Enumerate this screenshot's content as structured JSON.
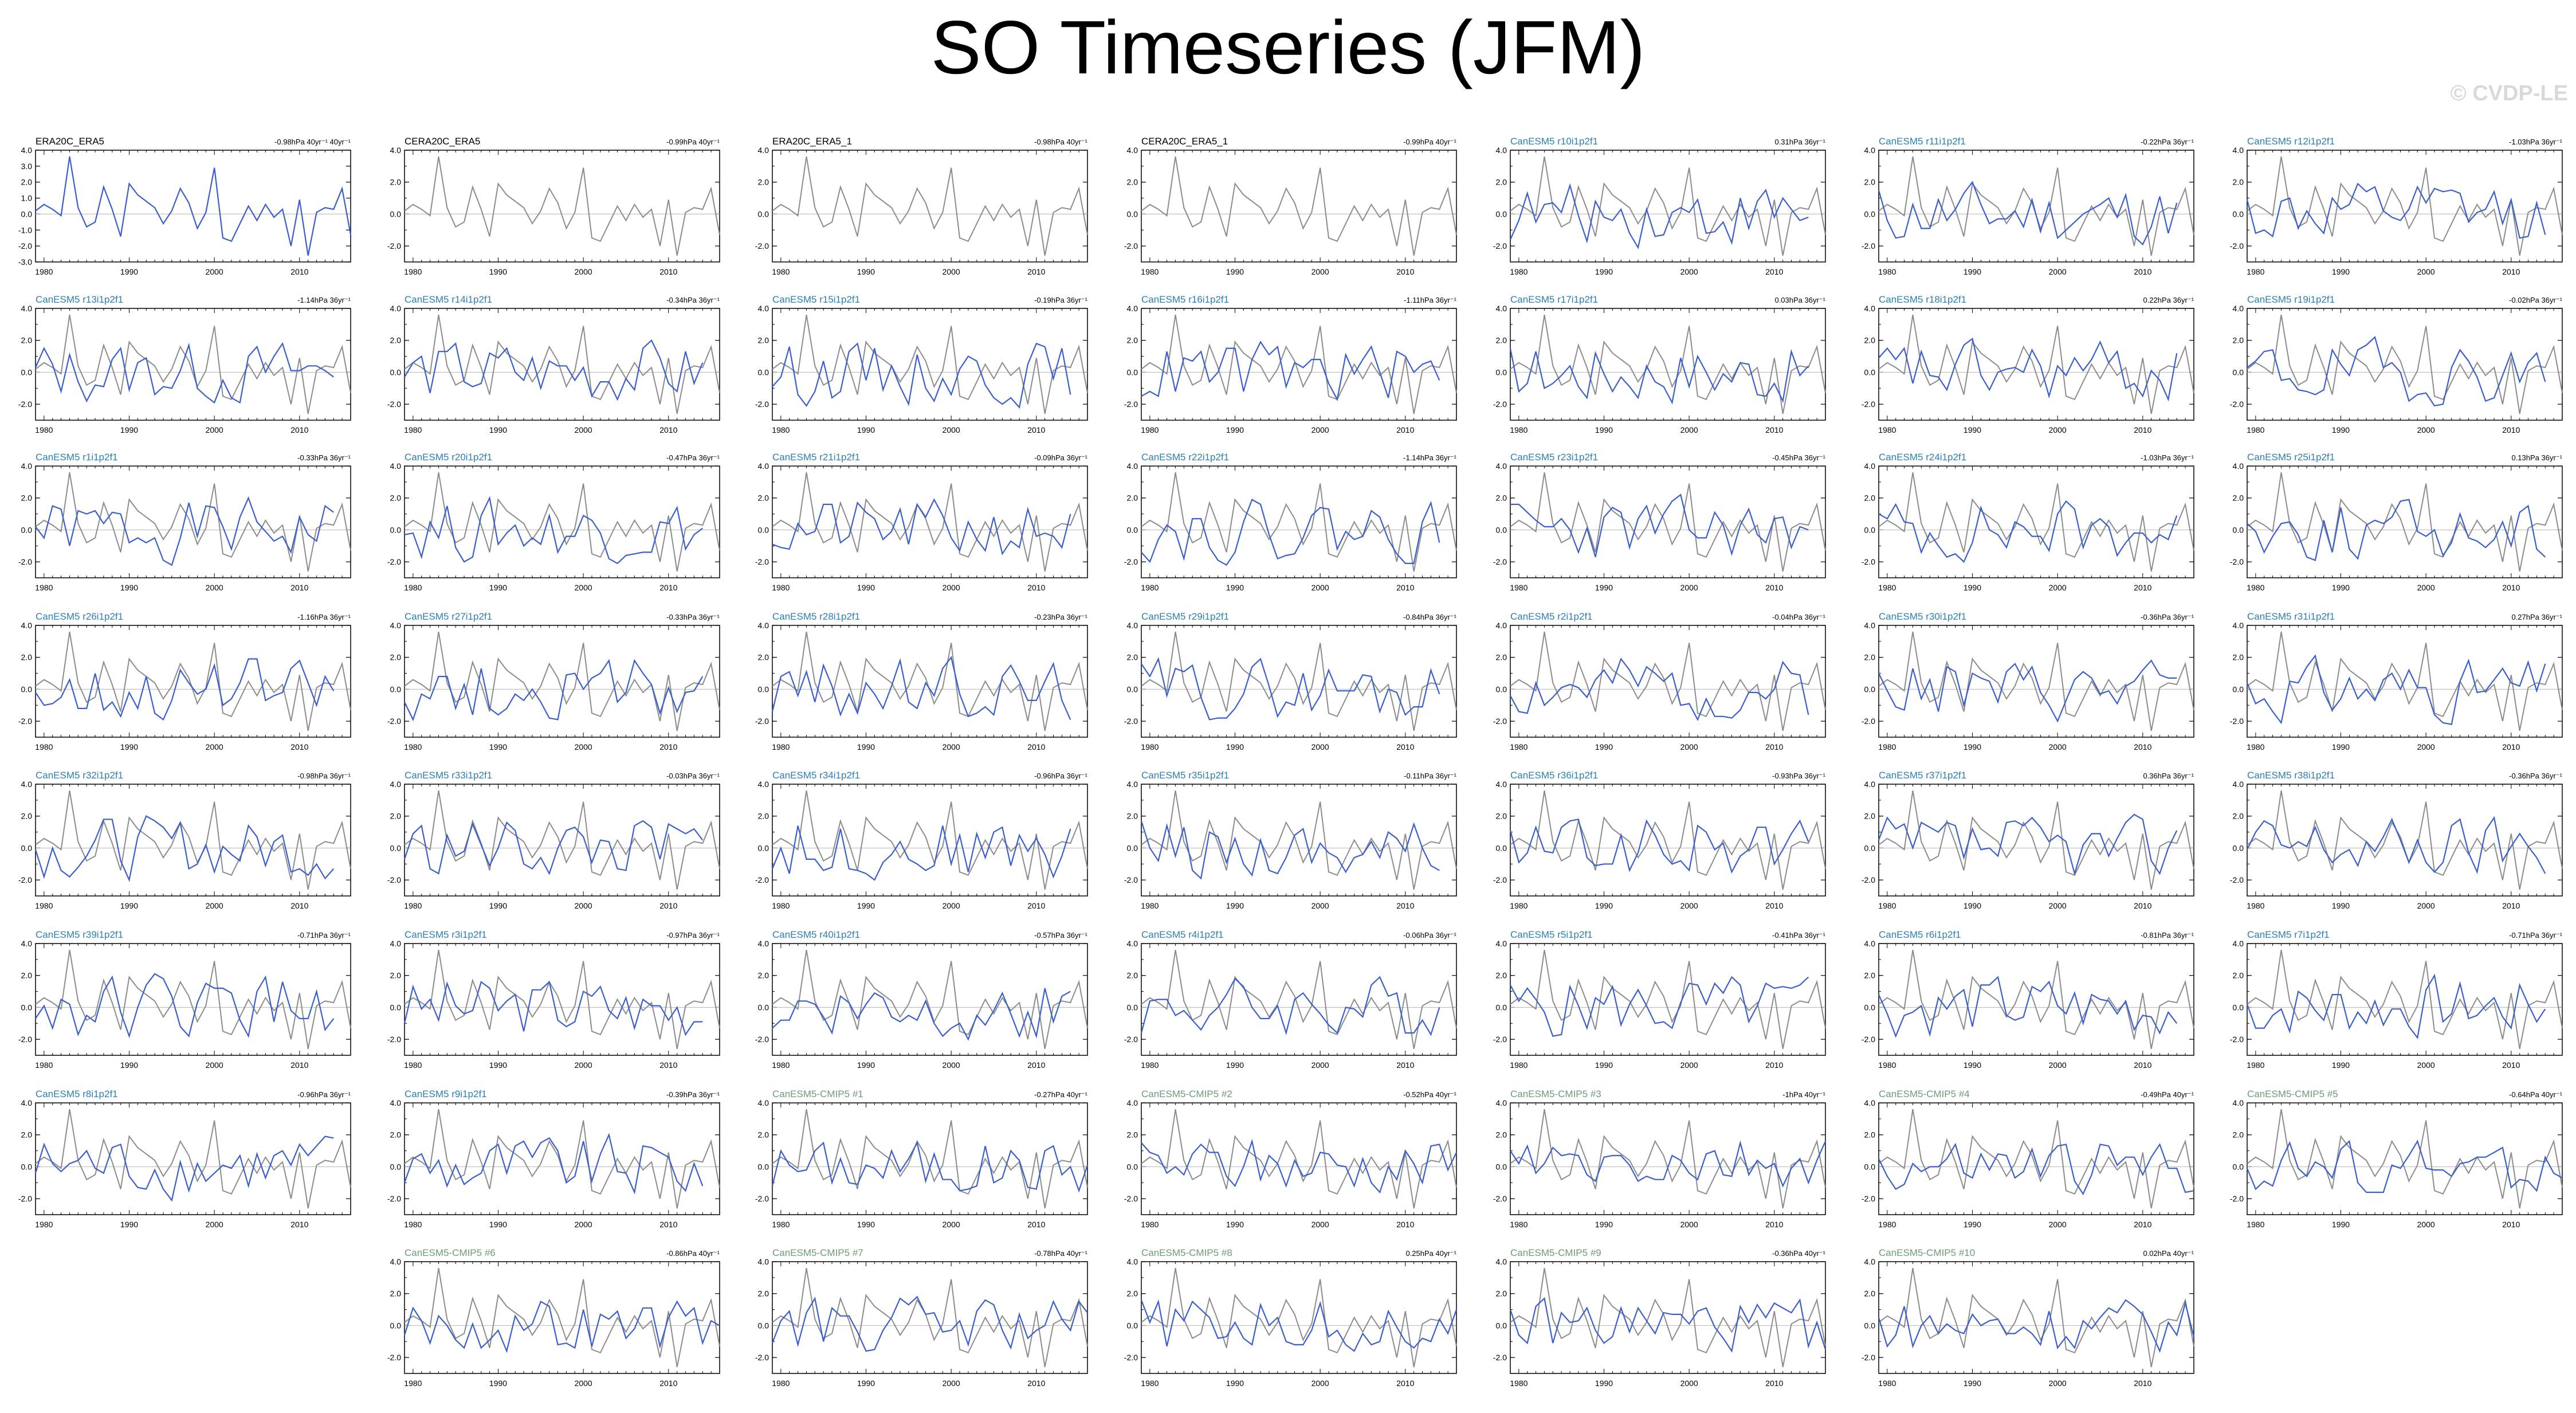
{
  "title": "SO Timeseries (JFM)",
  "watermark": "© CVDP-LE",
  "colors": {
    "model": "#3a5fcd",
    "observed": "#8c8c8c",
    "model_title": "#2b7fb4",
    "cmip_title": "#6e9b78",
    "obs_title": "#000000"
  },
  "x_ticks": [
    1980,
    1990,
    2000,
    2010
  ],
  "x_range": [
    1979,
    2016
  ],
  "chart_data": [
    {
      "type": "line",
      "title": "ERA20C_ERA5",
      "trend": "-0.98hPa 40yr⁻¹ 40yr⁻¹",
      "kind": "obs",
      "ylim": [
        -3.0,
        4.0
      ],
      "yticks": [
        "4.0",
        "3.0",
        "2.0",
        "1.0",
        "0.0",
        "-1.0",
        "-2.0",
        "-3.0"
      ],
      "x": [
        1979,
        1980,
        1981,
        1982,
        1983,
        1984,
        1985,
        1986,
        1987,
        1988,
        1989,
        1990,
        1991,
        1992,
        1993,
        1994,
        1995,
        1996,
        1997,
        1998,
        1999,
        2000,
        2001,
        2002,
        2003,
        2004,
        2005,
        2006,
        2007,
        2008,
        2009,
        2010,
        2011,
        2012,
        2013,
        2014,
        2015,
        2016
      ],
      "series": [
        {
          "values": [
            0.2,
            0.6,
            0.3,
            -0.1,
            3.6,
            0.4,
            -0.8,
            -0.5,
            1.7,
            0.3,
            -1.4,
            1.9,
            1.2,
            0.8,
            0.4,
            -0.6,
            0.2,
            1.6,
            0.7,
            -0.9,
            0.1,
            2.9,
            -1.5,
            -1.7,
            -0.6,
            0.5,
            -0.4,
            0.6,
            -0.2,
            0.3,
            -2.0,
            0.9,
            -2.6,
            0.1,
            0.4,
            0.3,
            1.6,
            -1.3
          ]
        }
      ]
    },
    {
      "type": "line",
      "title": "CERA20C_ERA5",
      "trend": "-0.99hPa 40yr⁻¹",
      "kind": "obs",
      "ylim": [
        -3.0,
        4.0
      ],
      "yticks": [
        "4.0",
        "2.0",
        "0.0",
        "-2.0"
      ],
      "series_style": "obs"
    },
    {
      "type": "line",
      "title": "ERA20C_ERA5_1",
      "trend": "-0.98hPa 40yr⁻¹",
      "kind": "obs",
      "ylim": [
        -3.0,
        4.0
      ],
      "yticks": [
        "4.0",
        "2.0",
        "0.0",
        "-2.0"
      ],
      "series_style": "obs"
    },
    {
      "type": "line",
      "title": "CERA20C_ERA5_1",
      "trend": "-0.99hPa 40yr⁻¹",
      "kind": "obs",
      "ylim": [
        -3.0,
        4.0
      ],
      "yticks": [
        "4.0",
        "2.0",
        "0.0",
        "-2.0"
      ],
      "series_style": "obs"
    },
    {
      "type": "line",
      "title": "CanESM5 r10i1p2f1",
      "trend": "0.31hPa 36yr⁻¹",
      "kind": "model",
      "seed": 10
    },
    {
      "type": "line",
      "title": "CanESM5 r11i1p2f1",
      "trend": "-0.22hPa 36yr⁻¹",
      "kind": "model",
      "seed": 11
    },
    {
      "type": "line",
      "title": "CanESM5 r12i1p2f1",
      "trend": "-1.03hPa 36yr⁻¹",
      "kind": "model",
      "seed": 12
    },
    {
      "type": "line",
      "title": "CanESM5 r13i1p2f1",
      "trend": "-1.14hPa 36yr⁻¹",
      "kind": "model",
      "seed": 13
    },
    {
      "type": "line",
      "title": "CanESM5 r14i1p2f1",
      "trend": "-0.34hPa 36yr⁻¹",
      "kind": "model",
      "seed": 14
    },
    {
      "type": "line",
      "title": "CanESM5 r15i1p2f1",
      "trend": "-0.19hPa 36yr⁻¹",
      "kind": "model",
      "seed": 15
    },
    {
      "type": "line",
      "title": "CanESM5 r16i1p2f1",
      "trend": "-1.11hPa 36yr⁻¹",
      "kind": "model",
      "seed": 16
    },
    {
      "type": "line",
      "title": "CanESM5 r17i1p2f1",
      "trend": "0.03hPa 36yr⁻¹",
      "kind": "model",
      "seed": 17
    },
    {
      "type": "line",
      "title": "CanESM5 r18i1p2f1",
      "trend": "0.22hPa 36yr⁻¹",
      "kind": "model",
      "seed": 18
    },
    {
      "type": "line",
      "title": "CanESM5 r19i1p2f1",
      "trend": "-0.02hPa 36yr⁻¹",
      "kind": "model",
      "seed": 19
    },
    {
      "type": "line",
      "title": "CanESM5 r1i1p2f1",
      "trend": "-0.33hPa 36yr⁻¹",
      "kind": "model",
      "seed": 1
    },
    {
      "type": "line",
      "title": "CanESM5 r20i1p2f1",
      "trend": "-0.47hPa 36yr⁻¹",
      "kind": "model",
      "seed": 20
    },
    {
      "type": "line",
      "title": "CanESM5 r21i1p2f1",
      "trend": "-0.09hPa 36yr⁻¹",
      "kind": "model",
      "seed": 21
    },
    {
      "type": "line",
      "title": "CanESM5 r22i1p2f1",
      "trend": "-1.14hPa 36yr⁻¹",
      "kind": "model",
      "seed": 22
    },
    {
      "type": "line",
      "title": "CanESM5 r23i1p2f1",
      "trend": "-0.45hPa 36yr⁻¹",
      "kind": "model",
      "seed": 23
    },
    {
      "type": "line",
      "title": "CanESM5 r24i1p2f1",
      "trend": "-1.03hPa 36yr⁻¹",
      "kind": "model",
      "seed": 24
    },
    {
      "type": "line",
      "title": "CanESM5 r25i1p2f1",
      "trend": "0.13hPa 36yr⁻¹",
      "kind": "model",
      "seed": 25
    },
    {
      "type": "line",
      "title": "CanESM5 r26i1p2f1",
      "trend": "-1.16hPa 36yr⁻¹",
      "kind": "model",
      "seed": 26
    },
    {
      "type": "line",
      "title": "CanESM5 r27i1p2f1",
      "trend": "-0.33hPa 36yr⁻¹",
      "kind": "model",
      "seed": 27
    },
    {
      "type": "line",
      "title": "CanESM5 r28i1p2f1",
      "trend": "-0.23hPa 36yr⁻¹",
      "kind": "model",
      "seed": 28
    },
    {
      "type": "line",
      "title": "CanESM5 r29i1p2f1",
      "trend": "-0.84hPa 36yr⁻¹",
      "kind": "model",
      "seed": 29
    },
    {
      "type": "line",
      "title": "CanESM5 r2i1p2f1",
      "trend": "-0.04hPa 36yr⁻¹",
      "kind": "model",
      "seed": 2
    },
    {
      "type": "line",
      "title": "CanESM5 r30i1p2f1",
      "trend": "-0.36hPa 36yr⁻¹",
      "kind": "model",
      "seed": 30
    },
    {
      "type": "line",
      "title": "CanESM5 r31i1p2f1",
      "trend": "0.27hPa 36yr⁻¹",
      "kind": "model",
      "seed": 31
    },
    {
      "type": "line",
      "title": "CanESM5 r32i1p2f1",
      "trend": "-0.98hPa 36yr⁻¹",
      "kind": "model",
      "seed": 32
    },
    {
      "type": "line",
      "title": "CanESM5 r33i1p2f1",
      "trend": "-0.03hPa 36yr⁻¹",
      "kind": "model",
      "seed": 33
    },
    {
      "type": "line",
      "title": "CanESM5 r34i1p2f1",
      "trend": "-0.96hPa 36yr⁻¹",
      "kind": "model",
      "seed": 34
    },
    {
      "type": "line",
      "title": "CanESM5 r35i1p2f1",
      "trend": "-0.11hPa 36yr⁻¹",
      "kind": "model",
      "seed": 35
    },
    {
      "type": "line",
      "title": "CanESM5 r36i1p2f1",
      "trend": "-0.93hPa 36yr⁻¹",
      "kind": "model",
      "seed": 36
    },
    {
      "type": "line",
      "title": "CanESM5 r37i1p2f1",
      "trend": "0.36hPa 36yr⁻¹",
      "kind": "model",
      "seed": 37
    },
    {
      "type": "line",
      "title": "CanESM5 r38i1p2f1",
      "trend": "-0.36hPa 36yr⁻¹",
      "kind": "model",
      "seed": 38
    },
    {
      "type": "line",
      "title": "CanESM5 r39i1p2f1",
      "trend": "-0.71hPa 36yr⁻¹",
      "kind": "model",
      "seed": 39
    },
    {
      "type": "line",
      "title": "CanESM5 r3i1p2f1",
      "trend": "-0.97hPa 36yr⁻¹",
      "kind": "model",
      "seed": 3
    },
    {
      "type": "line",
      "title": "CanESM5 r40i1p2f1",
      "trend": "-0.57hPa 36yr⁻¹",
      "kind": "model",
      "seed": 40
    },
    {
      "type": "line",
      "title": "CanESM5 r4i1p2f1",
      "trend": "-0.06hPa 36yr⁻¹",
      "kind": "model",
      "seed": 4
    },
    {
      "type": "line",
      "title": "CanESM5 r5i1p2f1",
      "trend": "-0.41hPa 36yr⁻¹",
      "kind": "model",
      "seed": 5
    },
    {
      "type": "line",
      "title": "CanESM5 r6i1p2f1",
      "trend": "-0.81hPa 36yr⁻¹",
      "kind": "model",
      "seed": 6
    },
    {
      "type": "line",
      "title": "CanESM5 r7i1p2f1",
      "trend": "-0.71hPa 36yr⁻¹",
      "kind": "model",
      "seed": 7
    },
    {
      "type": "line",
      "title": "CanESM5 r8i1p2f1",
      "trend": "-0.96hPa 36yr⁻¹",
      "kind": "model",
      "seed": 8
    },
    {
      "type": "line",
      "title": "CanESM5 r9i1p2f1",
      "trend": "-0.39hPa 36yr⁻¹",
      "kind": "model",
      "seed": 9
    },
    {
      "type": "line",
      "title": "CanESM5-CMIP5 #1",
      "trend": "-0.27hPa 40yr⁻¹",
      "kind": "cmip",
      "seed": 101
    },
    {
      "type": "line",
      "title": "CanESM5-CMIP5 #2",
      "trend": "-0.52hPa 40yr⁻¹",
      "kind": "cmip",
      "seed": 102
    },
    {
      "type": "line",
      "title": "CanESM5-CMIP5 #3",
      "trend": "-1hPa 40yr⁻¹",
      "kind": "cmip",
      "seed": 103
    },
    {
      "type": "line",
      "title": "CanESM5-CMIP5 #4",
      "trend": "-0.49hPa 40yr⁻¹",
      "kind": "cmip",
      "seed": 104
    },
    {
      "type": "line",
      "title": "CanESM5-CMIP5 #5",
      "trend": "-0.64hPa 40yr⁻¹",
      "kind": "cmip",
      "seed": 105
    },
    {
      "type": "line",
      "title": "CanESM5-CMIP5 #6",
      "trend": "-0.86hPa 40yr⁻¹",
      "kind": "cmip",
      "seed": 106
    },
    {
      "type": "line",
      "title": "CanESM5-CMIP5 #7",
      "trend": "-0.78hPa 40yr⁻¹",
      "kind": "cmip",
      "seed": 107
    },
    {
      "type": "line",
      "title": "CanESM5-CMIP5 #8",
      "trend": "0.25hPa 40yr⁻¹",
      "kind": "cmip",
      "seed": 108
    },
    {
      "type": "line",
      "title": "CanESM5-CMIP5 #9",
      "trend": "-0.36hPa 40yr⁻¹",
      "kind": "cmip",
      "seed": 109
    },
    {
      "type": "line",
      "title": "CanESM5-CMIP5 #10",
      "trend": "0.02hPa 40yr⁻¹",
      "kind": "cmip",
      "seed": 110
    }
  ]
}
